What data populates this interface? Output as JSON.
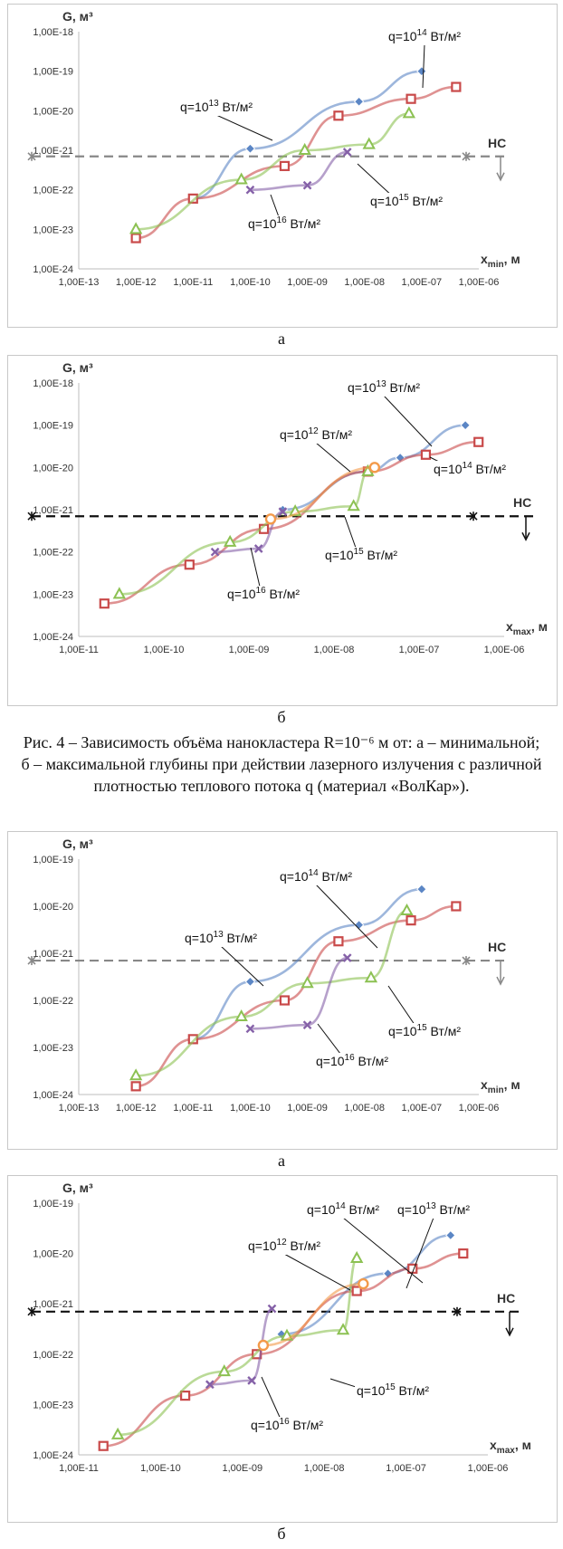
{
  "figure_caption": "Рис. 4 – Зависимость объёма нанокластера R=10⁻⁶ м от: а – минимальной; б – максимальной глубины при действии лазерного излучения с различной плотностью теплового потока q (материал «ВолКар»).",
  "colors": {
    "q12": "#f39a4a",
    "q13": "#5b86c5",
    "q14": "#c94a4a",
    "q15": "#8cc152",
    "q16": "#8561a8",
    "hc": "#888888",
    "hc_dark": "#111111"
  },
  "chart_data": [
    {
      "id": "c1",
      "type": "line",
      "sublabel": "а",
      "ylabel": "G, м³",
      "xlabel": "x",
      "xlabel_sub": "min",
      "xlabel_unit": ", м",
      "x_scale": "log",
      "y_scale": "log",
      "xlim": [
        1e-13,
        1e-06
      ],
      "ylim": [
        1e-24,
        1e-18
      ],
      "x_ticks": [
        "1,00E-13",
        "1,00E-12",
        "1,00E-11",
        "1,00E-10",
        "1,00E-09",
        "1,00E-08",
        "1,00E-07",
        "1,00E-06"
      ],
      "y_ticks": [
        "1,00E-24",
        "1,00E-23",
        "1,00E-22",
        "1,00E-21",
        "1,00E-20",
        "1,00E-19",
        "1,00E-18"
      ],
      "hc": {
        "label": "НС",
        "y": 7e-22,
        "style": "gray"
      },
      "series": [
        {
          "key": "q13",
          "marker": "diamond",
          "x": [
            1e-11,
            1e-10,
            8e-09,
            1e-07
          ],
          "y": [
            6e-23,
            1.1e-21,
            1.7e-20,
            1e-19
          ]
        },
        {
          "key": "q14",
          "marker": "square",
          "x": [
            1e-12,
            1e-11,
            4e-10,
            3.5e-09,
            6.5e-08,
            4e-07
          ],
          "y": [
            6e-24,
            6e-23,
            4e-22,
            7.5e-21,
            2e-20,
            4e-20
          ]
        },
        {
          "key": "q15",
          "marker": "triangle",
          "x": [
            1e-12,
            7e-11,
            9e-10,
            1.2e-08,
            6e-08
          ],
          "y": [
            1e-23,
            1.8e-22,
            1e-21,
            1.4e-21,
            8.5e-21
          ]
        },
        {
          "key": "q16",
          "marker": "x",
          "x": [
            1e-10,
            1e-09,
            5e-09
          ],
          "y": [
            1e-22,
            1.3e-22,
            9e-22
          ]
        }
      ],
      "annotations": [
        {
          "base": "q=10",
          "exp": "14",
          "unit": " Вт/м²",
          "series": "q14"
        },
        {
          "base": "q=10",
          "exp": "13",
          "unit": " Вт/м²",
          "series": "q13"
        },
        {
          "base": "q=10",
          "exp": "15",
          "unit": " Вт/м²",
          "series": "q15"
        },
        {
          "base": "q=10",
          "exp": "16",
          "unit": " Вт/м²",
          "series": "q16"
        }
      ]
    },
    {
      "id": "c2",
      "type": "line",
      "sublabel": "б",
      "ylabel": "G, м³",
      "xlabel": "x",
      "xlabel_sub": "max",
      "xlabel_unit": ", м",
      "x_scale": "log",
      "y_scale": "log",
      "xlim": [
        1e-11,
        1e-06
      ],
      "ylim": [
        1e-24,
        1e-18
      ],
      "x_ticks": [
        "1,00E-11",
        "1,00E-10",
        "1,00E-09",
        "1,00E-08",
        "1,00E-07",
        "1,00E-06"
      ],
      "y_ticks": [
        "1,00E-24",
        "1,00E-23",
        "1,00E-22",
        "1,00E-21",
        "1,00E-20",
        "1,00E-19",
        "1,00E-18"
      ],
      "hc": {
        "label": "НС",
        "y": 7e-22,
        "style": "black"
      },
      "series": [
        {
          "key": "q13",
          "marker": "diamond",
          "x": [
            2.5e-09,
            2.5e-08,
            6e-08,
            3.5e-07
          ],
          "y": [
            1e-21,
            8e-21,
            1.7e-20,
            1e-19
          ]
        },
        {
          "key": "q14",
          "marker": "square",
          "x": [
            2e-11,
            2e-10,
            1.5e-09,
            2.5e-08,
            1.2e-07,
            5e-07
          ],
          "y": [
            6e-24,
            5e-23,
            3.5e-22,
            8e-21,
            2e-20,
            4e-20
          ]
        },
        {
          "key": "q15",
          "marker": "triangle",
          "x": [
            3e-11,
            6e-10,
            3.5e-09,
            1.7e-08,
            2.5e-08
          ],
          "y": [
            1e-23,
            1.7e-22,
            9e-22,
            1.2e-21,
            8e-21
          ]
        },
        {
          "key": "q16",
          "marker": "x",
          "x": [
            4e-10,
            1.3e-09,
            2.5e-09
          ],
          "y": [
            1e-22,
            1.2e-22,
            9e-22
          ]
        },
        {
          "key": "q12",
          "marker": "circle",
          "x": [
            1.8e-09,
            3e-08
          ],
          "y": [
            6e-22,
            1e-20
          ]
        }
      ],
      "annotations": [
        {
          "base": "q=10",
          "exp": "13",
          "unit": " Вт/м²",
          "series": "q13"
        },
        {
          "base": "q=10",
          "exp": "12",
          "unit": " Вт/м²",
          "series": "q12"
        },
        {
          "base": "q=10",
          "exp": "14",
          "unit": " Вт/м²",
          "series": "q14"
        },
        {
          "base": "q=10",
          "exp": "15",
          "unit": " Вт/м²",
          "series": "q15"
        },
        {
          "base": "q=10",
          "exp": "16",
          "unit": " Вт/м²",
          "series": "q16"
        }
      ]
    },
    {
      "id": "c3",
      "type": "line",
      "sublabel": "а",
      "ylabel": "G, м³",
      "xlabel": "x",
      "xlabel_sub": "min",
      "xlabel_unit": ", м",
      "x_scale": "log",
      "y_scale": "log",
      "xlim": [
        1e-13,
        1e-06
      ],
      "ylim": [
        1e-24,
        1e-19
      ],
      "x_ticks": [
        "1,00E-13",
        "1,00E-12",
        "1,00E-11",
        "1,00E-10",
        "1,00E-09",
        "1,00E-08",
        "1,00E-07",
        "1,00E-06"
      ],
      "y_ticks": [
        "1,00E-24",
        "1,00E-23",
        "1,00E-22",
        "1,00E-21",
        "1,00E-20",
        "1,00E-19"
      ],
      "hc": {
        "label": "НС",
        "y": 7e-22,
        "style": "gray"
      },
      "series": [
        {
          "key": "q13",
          "marker": "diamond",
          "x": [
            1e-11,
            1e-10,
            8e-09,
            1e-07
          ],
          "y": [
            1.5e-23,
            2.5e-22,
            4e-21,
            2.3e-20
          ]
        },
        {
          "key": "q14",
          "marker": "square",
          "x": [
            1e-12,
            1e-11,
            4e-10,
            3.5e-09,
            6.5e-08,
            4e-07
          ],
          "y": [
            1.5e-24,
            1.5e-23,
            1e-22,
            1.8e-21,
            5e-21,
            1e-20
          ]
        },
        {
          "key": "q15",
          "marker": "triangle",
          "x": [
            1e-12,
            7e-11,
            1e-09,
            1.3e-08,
            5.5e-08
          ],
          "y": [
            2.5e-24,
            4.5e-23,
            2.3e-22,
            3e-22,
            8e-21
          ]
        },
        {
          "key": "q16",
          "marker": "x",
          "x": [
            1e-10,
            1e-09,
            5e-09
          ],
          "y": [
            2.5e-23,
            3e-23,
            8e-22
          ]
        }
      ],
      "annotations": [
        {
          "base": "q=10",
          "exp": "14",
          "unit": " Вт/м²",
          "series": "q14"
        },
        {
          "base": "q=10",
          "exp": "13",
          "unit": " Вт/м²",
          "series": "q13"
        },
        {
          "base": "q=10",
          "exp": "15",
          "unit": " Вт/м²",
          "series": "q15"
        },
        {
          "base": "q=10",
          "exp": "16",
          "unit": " Вт/м²",
          "series": "q16"
        }
      ]
    },
    {
      "id": "c4",
      "type": "line",
      "sublabel": "б",
      "ylabel": "G, м³",
      "xlabel": "x",
      "xlabel_sub": "max",
      "xlabel_unit": ", м",
      "x_scale": "log",
      "y_scale": "log",
      "xlim": [
        1e-11,
        1e-06
      ],
      "ylim": [
        1e-24,
        1e-19
      ],
      "x_ticks": [
        "1,00E-11",
        "1,00E-10",
        "1,00E-09",
        "1,00E-08",
        "1,00E-07",
        "1,00E-06"
      ],
      "y_ticks": [
        "1,00E-24",
        "1,00E-23",
        "1,00E-22",
        "1,00E-21",
        "1,00E-20",
        "1,00E-19"
      ],
      "hc": {
        "label": "НС",
        "y": 7e-22,
        "style": "black"
      },
      "series": [
        {
          "key": "q13",
          "marker": "diamond",
          "x": [
            3e-09,
            6e-08,
            3.5e-07
          ],
          "y": [
            2.5e-22,
            4e-21,
            2.3e-20
          ]
        },
        {
          "key": "q14",
          "marker": "square",
          "x": [
            2e-11,
            2e-10,
            1.5e-09,
            2.5e-08,
            1.2e-07,
            5e-07
          ],
          "y": [
            1.5e-24,
            1.5e-23,
            1e-22,
            1.8e-21,
            5e-21,
            1e-20
          ]
        },
        {
          "key": "q15",
          "marker": "triangle",
          "x": [
            3e-11,
            6e-10,
            3.5e-09,
            1.7e-08,
            2.5e-08
          ],
          "y": [
            2.5e-24,
            4.5e-23,
            2.3e-22,
            3e-22,
            8e-21
          ]
        },
        {
          "key": "q16",
          "marker": "x",
          "x": [
            4e-10,
            1.3e-09,
            2.3e-09
          ],
          "y": [
            2.5e-23,
            3e-23,
            8e-22
          ]
        },
        {
          "key": "q12",
          "marker": "circle",
          "x": [
            1.8e-09,
            3e-08
          ],
          "y": [
            1.5e-22,
            2.5e-21
          ]
        }
      ],
      "annotations": [
        {
          "base": "q=10",
          "exp": "14",
          "unit": " Вт/м²",
          "series": "q14"
        },
        {
          "base": "q=10",
          "exp": "13",
          "unit": " Вт/м²",
          "series": "q13"
        },
        {
          "base": "q=10",
          "exp": "12",
          "unit": " Вт/м²",
          "series": "q12"
        },
        {
          "base": "q=10",
          "exp": "15",
          "unit": " Вт/м²",
          "series": "q15"
        },
        {
          "base": "q=10",
          "exp": "16",
          "unit": " Вт/м²",
          "series": "q16"
        }
      ]
    }
  ]
}
